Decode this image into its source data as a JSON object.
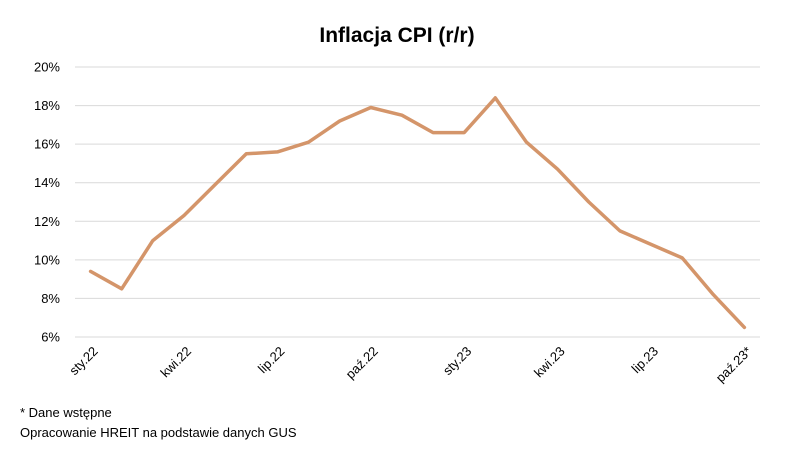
{
  "chart_data": {
    "type": "line",
    "title": "Inflacja CPI (r/r)",
    "xlabel": "",
    "ylabel": "",
    "ylim": [
      6,
      20
    ],
    "yticks": [
      6,
      8,
      10,
      12,
      14,
      16,
      18,
      20
    ],
    "ytick_suffix": "%",
    "grid": true,
    "x_tick_labels": [
      {
        "index": 0,
        "label": "sty.22"
      },
      {
        "index": 3,
        "label": "kwi.22"
      },
      {
        "index": 6,
        "label": "lip.22"
      },
      {
        "index": 9,
        "label": "paź.22"
      },
      {
        "index": 12,
        "label": "sty.23"
      },
      {
        "index": 15,
        "label": "kwi.23"
      },
      {
        "index": 18,
        "label": "lip.23"
      },
      {
        "index": 21,
        "label": "paź.23*"
      }
    ],
    "series": [
      {
        "color": "#d4956a",
        "values": [
          9.4,
          8.5,
          11.0,
          12.3,
          13.9,
          15.5,
          15.6,
          16.1,
          17.2,
          17.9,
          17.5,
          16.6,
          16.6,
          18.4,
          16.1,
          14.7,
          13.0,
          11.5,
          10.8,
          10.1,
          8.2,
          6.5
        ]
      }
    ]
  },
  "footnotes": {
    "line1": "* Dane wstępne",
    "line2": "Opracowanie HREIT na podstawie danych GUS"
  }
}
